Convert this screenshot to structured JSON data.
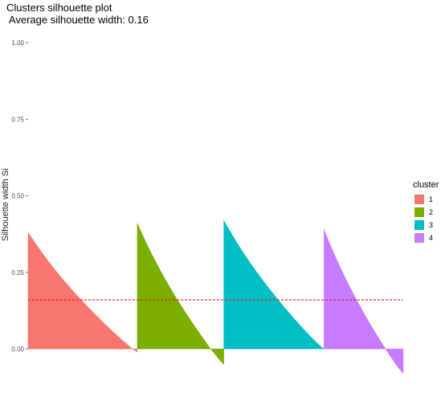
{
  "chart_data": {
    "type": "area",
    "title": "Clusters silhouette plot",
    "subtitle": "Average silhouette width: 0.16",
    "ylabel": "Silhouette width Si",
    "xlabel": "",
    "ylim": [
      -0.08,
      1.0
    ],
    "yticks": [
      "0.00",
      "0.25",
      "0.50",
      "0.75",
      "1.00"
    ],
    "ytick_values": [
      0,
      0.25,
      0.5,
      0.75,
      1.0
    ],
    "average_silhouette": 0.16,
    "grid": false,
    "legend_position": "right",
    "legend_title": "cluster",
    "series": [
      {
        "name": "1",
        "color": "#F8766D",
        "n": 135,
        "max": 0.38,
        "min": -0.01
      },
      {
        "name": "2",
        "color": "#7CAE00",
        "n": 107,
        "max": 0.41,
        "min": -0.05
      },
      {
        "name": "3",
        "color": "#00BFC4",
        "n": 124,
        "max": 0.42,
        "min": 0.0
      },
      {
        "name": "4",
        "color": "#C77CFF",
        "n": 98,
        "max": 0.39,
        "min": -0.08
      }
    ]
  }
}
